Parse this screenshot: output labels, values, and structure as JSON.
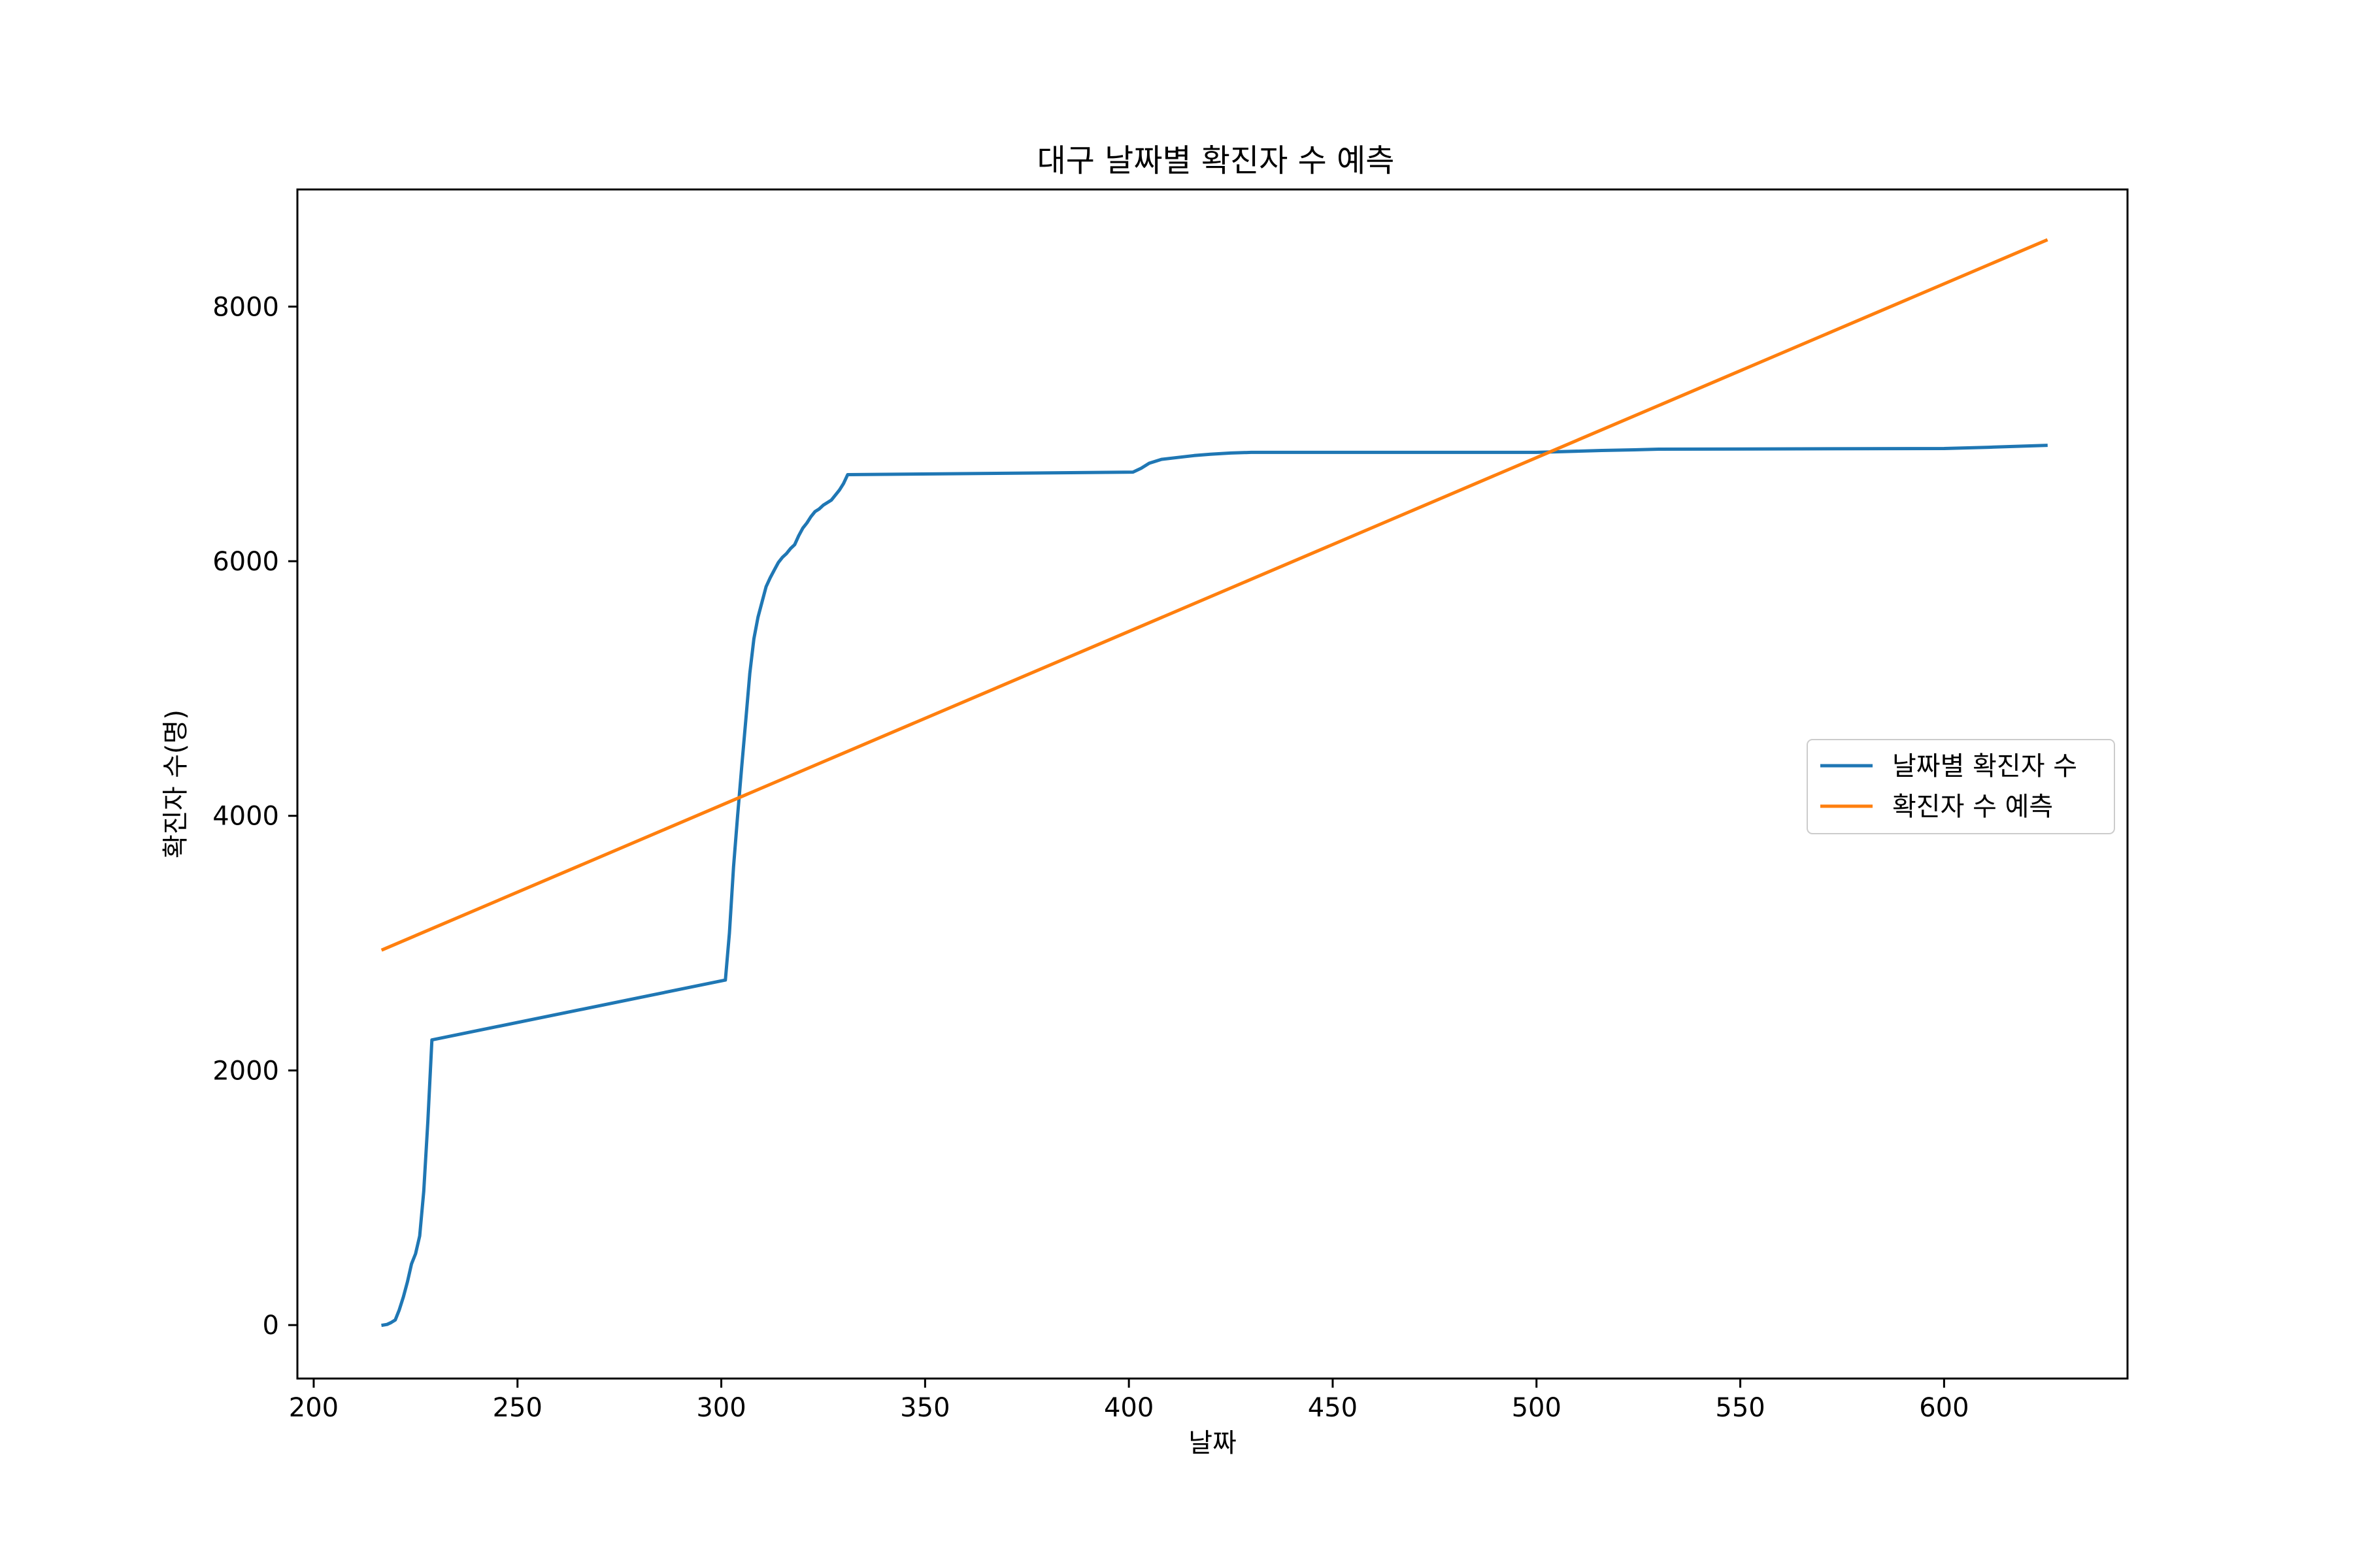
{
  "chart_data": {
    "type": "line",
    "title": "대구 날짜별 확진자 수 예측",
    "xlabel": "날짜",
    "ylabel": "확진자 수(명)",
    "xlim": [
      196,
      645
    ],
    "ylim": [
      -420,
      8920
    ],
    "x_ticks": [
      200,
      250,
      300,
      350,
      400,
      450,
      500,
      550,
      600
    ],
    "y_ticks": [
      0,
      2000,
      4000,
      6000,
      8000
    ],
    "grid": false,
    "legend_position": "center-right",
    "series": [
      {
        "name": "날짜별 확진자 수",
        "color": "#1f77b4",
        "points": [
          [
            217,
            0
          ],
          [
            218,
            5
          ],
          [
            219,
            20
          ],
          [
            220,
            40
          ],
          [
            221,
            120
          ],
          [
            222,
            220
          ],
          [
            223,
            340
          ],
          [
            224,
            480
          ],
          [
            225,
            560
          ],
          [
            226,
            700
          ],
          [
            227,
            1050
          ],
          [
            228,
            1600
          ],
          [
            229,
            2240
          ],
          [
            301,
            2710
          ],
          [
            302,
            3080
          ],
          [
            303,
            3600
          ],
          [
            304,
            4000
          ],
          [
            305,
            4380
          ],
          [
            306,
            4750
          ],
          [
            307,
            5120
          ],
          [
            308,
            5390
          ],
          [
            309,
            5560
          ],
          [
            310,
            5680
          ],
          [
            311,
            5800
          ],
          [
            312,
            5870
          ],
          [
            313,
            5930
          ],
          [
            314,
            5990
          ],
          [
            315,
            6030
          ],
          [
            316,
            6060
          ],
          [
            317,
            6100
          ],
          [
            318,
            6130
          ],
          [
            319,
            6200
          ],
          [
            320,
            6260
          ],
          [
            321,
            6300
          ],
          [
            322,
            6350
          ],
          [
            323,
            6390
          ],
          [
            324,
            6410
          ],
          [
            325,
            6440
          ],
          [
            326,
            6460
          ],
          [
            327,
            6480
          ],
          [
            328,
            6520
          ],
          [
            329,
            6560
          ],
          [
            330,
            6610
          ],
          [
            331,
            6680
          ],
          [
            401,
            6700
          ],
          [
            403,
            6730
          ],
          [
            405,
            6770
          ],
          [
            408,
            6800
          ],
          [
            412,
            6815
          ],
          [
            416,
            6830
          ],
          [
            420,
            6840
          ],
          [
            425,
            6850
          ],
          [
            430,
            6855
          ],
          [
            500,
            6855
          ],
          [
            516,
            6870
          ],
          [
            524,
            6875
          ],
          [
            530,
            6880
          ],
          [
            600,
            6885
          ],
          [
            611,
            6895
          ],
          [
            625,
            6910
          ]
        ]
      },
      {
        "name": "확진자 수 예측",
        "color": "#ff7f0e",
        "points": [
          [
            217,
            2950
          ],
          [
            625,
            8520
          ]
        ]
      }
    ]
  }
}
